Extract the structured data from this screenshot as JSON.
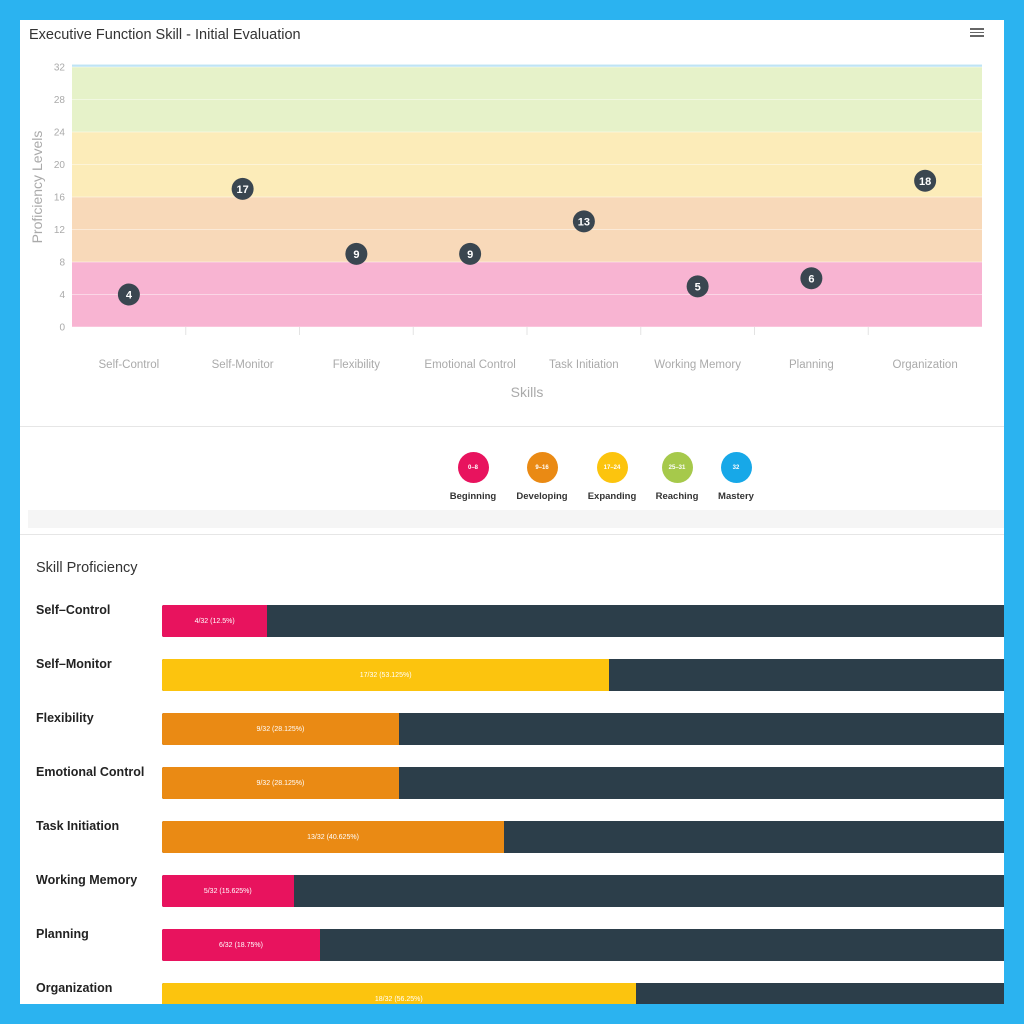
{
  "chart_data": {
    "type": "scatter",
    "title": "Executive Function Skill - Initial Evaluation",
    "xlabel": "Skills",
    "ylabel": "Proficiency Levels",
    "ylim": [
      0,
      32
    ],
    "yticks": [
      "0",
      "4",
      "8",
      "12",
      "16",
      "20",
      "24",
      "28",
      "32"
    ],
    "categories": [
      "Self-Control",
      "Self-Monitor",
      "Flexibility",
      "Emotional Control",
      "Task Initiation",
      "Working Memory",
      "Planning",
      "Organization"
    ],
    "values": [
      4,
      17,
      9,
      9,
      13,
      5,
      6,
      18
    ],
    "bands": [
      {
        "from": 0,
        "to": 8,
        "color": "#f8b4d2"
      },
      {
        "from": 8,
        "to": 16,
        "color": "#f8d9b9"
      },
      {
        "from": 16,
        "to": 24,
        "color": "#fcecb9"
      },
      {
        "from": 24,
        "to": 32,
        "color": "#e6f2c9"
      },
      {
        "from": 32,
        "to": 32.3,
        "color": "#bfe4f5"
      }
    ],
    "marker_color": "#3a4650"
  },
  "legend": [
    {
      "range": "0–8",
      "label": "Beginning",
      "color": "#e8135e"
    },
    {
      "range": "9–16",
      "label": "Developing",
      "color": "#ea8a14"
    },
    {
      "range": "17–24",
      "label": "Expanding",
      "color": "#fcc40e"
    },
    {
      "range": "25–31",
      "label": "Reaching",
      "color": "#a6c94b"
    },
    {
      "range": "32",
      "label": "Mastery",
      "color": "#17a8e8"
    }
  ],
  "proficiency": {
    "title": "Skill Proficiency",
    "max": 32,
    "track_color": "#2c3e4a",
    "rows": [
      {
        "label": "Self–Control",
        "value": 4,
        "text": "4/32 (12.5%)",
        "color": "#e8135e"
      },
      {
        "label": "Self–Monitor",
        "value": 17,
        "text": "17/32 (53.125%)",
        "color": "#fcc40e"
      },
      {
        "label": "Flexibility",
        "value": 9,
        "text": "9/32 (28.125%)",
        "color": "#ea8a14"
      },
      {
        "label": "Emotional Control",
        "value": 9,
        "text": "9/32 (28.125%)",
        "color": "#ea8a14"
      },
      {
        "label": "Task Initiation",
        "value": 13,
        "text": "13/32 (40.625%)",
        "color": "#ea8a14"
      },
      {
        "label": "Working Memory",
        "value": 5,
        "text": "5/32 (15.625%)",
        "color": "#e8135e"
      },
      {
        "label": "Planning",
        "value": 6,
        "text": "6/32 (18.75%)",
        "color": "#e8135e"
      },
      {
        "label": "Organization",
        "value": 18,
        "text": "18/32 (56.25%)",
        "color": "#fcc40e"
      }
    ]
  }
}
